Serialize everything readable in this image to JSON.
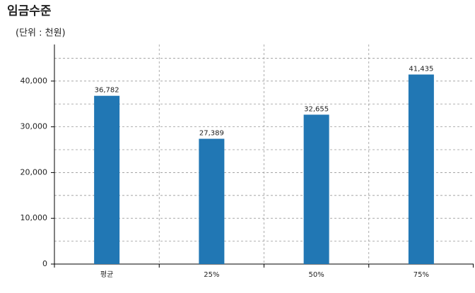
{
  "chart_data": {
    "type": "bar",
    "title": "임금수준",
    "subtitle": "(단위 : 천원)",
    "categories": [
      "평균",
      "25%",
      "50%",
      "75%"
    ],
    "values": [
      36782,
      27389,
      32655,
      41435
    ],
    "value_labels": [
      "36,782",
      "27,389",
      "32,655",
      "41,435"
    ],
    "color": "#2177b4",
    "ylim": [
      0,
      48000
    ],
    "yticks": [
      0,
      {
        "value": 10000,
        "label": "10,000"
      },
      {
        "value": 20000,
        "label": "20,000"
      },
      {
        "value": 30000,
        "label": "30,000"
      },
      {
        "value": 40000,
        "label": "40,000"
      }
    ],
    "minor_yticks": [
      5000,
      15000,
      25000,
      35000,
      45000
    ],
    "grid": true
  }
}
